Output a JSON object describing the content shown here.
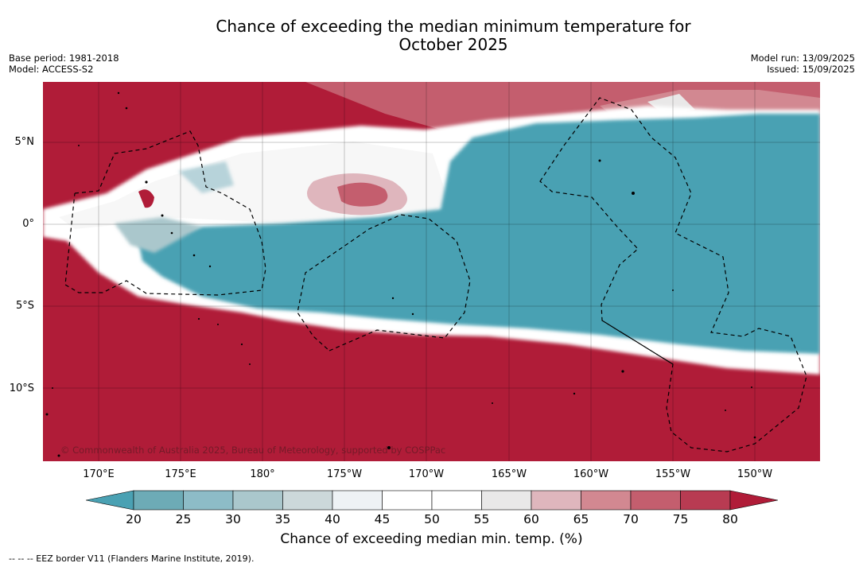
{
  "title_line1": "Chance of exceeding the median minimum temperature for",
  "title_line2": "October 2025",
  "base_period": "Base period: 1981-2018",
  "model": "Model: ACCESS-S2",
  "model_run": "Model run: 13/09/2025",
  "issued": "Issued: 15/09/2025",
  "lat_labels": [
    "5°N",
    "0°",
    "5°S",
    "10°S"
  ],
  "lon_labels": [
    "170°E",
    "175°E",
    "180°",
    "175°W",
    "170°W",
    "165°W",
    "160°W",
    "155°W",
    "150°W"
  ],
  "copyright": "© Commonwealth of Australia 2025, Bureau of Meteorology, supported by COSPPac",
  "colorbar": {
    "ticks": [
      "20",
      "25",
      "30",
      "35",
      "40",
      "45",
      "50",
      "55",
      "60",
      "65",
      "70",
      "75",
      "80"
    ],
    "colors": [
      "#4aa1b3",
      "#6dabb6",
      "#8dbcc7",
      "#aac7cc",
      "#ccd8da",
      "#eef2f5",
      "#ffffff",
      "#ffffff",
      "#e9e8e8",
      "#dfb6bd",
      "#d28891",
      "#c45e6e",
      "#b83b52",
      "#b01c38"
    ],
    "label": "Chance of exceeding median min. temp. (%)"
  },
  "footer": "--  --  -- EEZ border V11 (Flanders Marine Institute, 2019).",
  "icons": [
    "colorbar-arrow-low-icon",
    "colorbar-arrow-high-icon"
  ]
}
